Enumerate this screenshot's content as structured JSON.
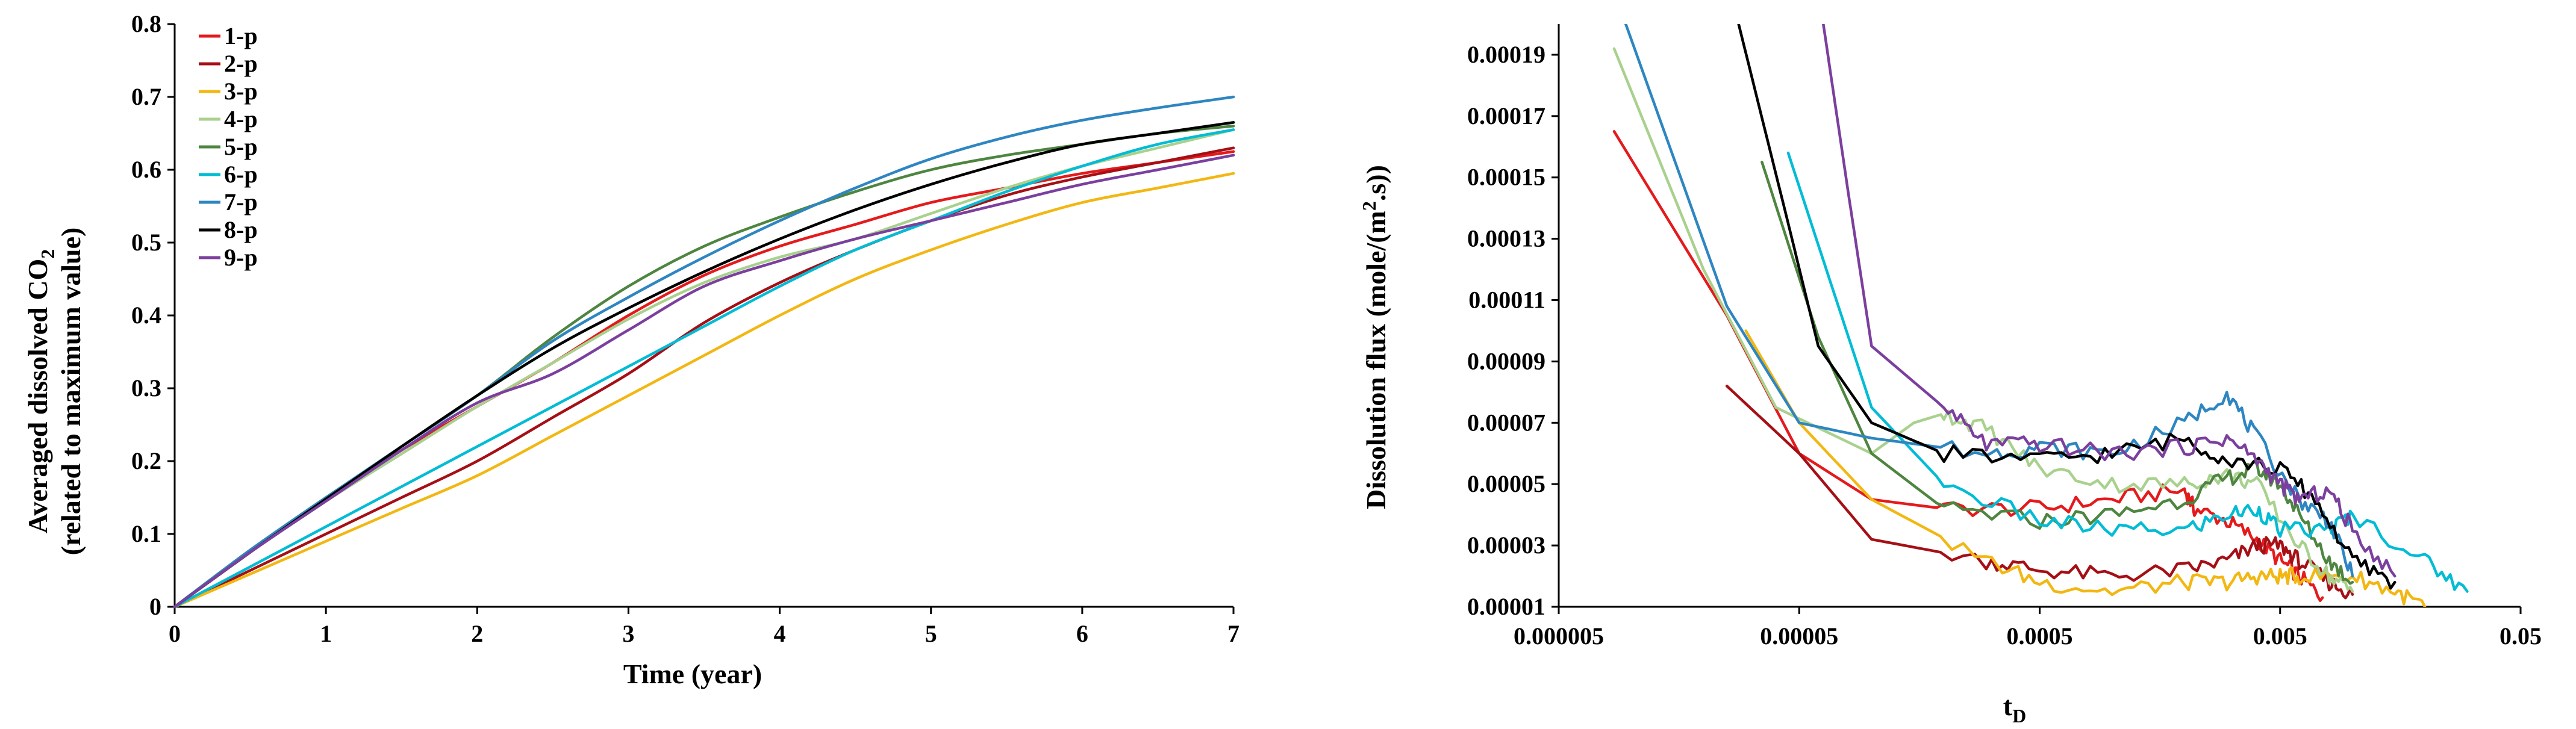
{
  "chart_data": [
    {
      "type": "line",
      "title": "",
      "xlabel": "Time (year)",
      "ylabel_line1_prefix": "Averaged dissolved CO",
      "ylabel_line1_sub": "2",
      "ylabel_line2": "(related to maximum value)",
      "xlim": [
        0,
        7
      ],
      "ylim": [
        0,
        0.8
      ],
      "xticks": [
        "0",
        "1",
        "2",
        "3",
        "4",
        "5",
        "6",
        "7"
      ],
      "yticks": [
        "0",
        "0.1",
        "0.2",
        "0.3",
        "0.4",
        "0.5",
        "0.6",
        "0.7",
        "0.8"
      ],
      "legend_position": "top-left",
      "x": [
        0,
        0.5,
        1,
        1.5,
        2,
        2.5,
        3,
        3.5,
        4,
        4.5,
        5,
        5.5,
        6,
        6.5,
        7
      ],
      "series": [
        {
          "name": "1-p",
          "color": "#e41a1c",
          "values": [
            0,
            0.075,
            0.148,
            0.215,
            0.275,
            0.335,
            0.4,
            0.455,
            0.495,
            0.525,
            0.555,
            0.575,
            0.595,
            0.61,
            0.625
          ]
        },
        {
          "name": "2-p",
          "color": "#a50f15",
          "values": [
            0,
            0.05,
            0.1,
            0.15,
            0.2,
            0.26,
            0.32,
            0.39,
            0.445,
            0.49,
            0.53,
            0.565,
            0.59,
            0.61,
            0.63
          ]
        },
        {
          "name": "3-p",
          "color": "#f2b712",
          "values": [
            0,
            0.045,
            0.09,
            0.135,
            0.18,
            0.235,
            0.29,
            0.345,
            0.4,
            0.45,
            0.49,
            0.525,
            0.555,
            0.575,
            0.595
          ]
        },
        {
          "name": "4-p",
          "color": "#a9d18e",
          "values": [
            0,
            0.075,
            0.145,
            0.21,
            0.275,
            0.335,
            0.395,
            0.445,
            0.48,
            0.505,
            0.54,
            0.575,
            0.605,
            0.63,
            0.655
          ]
        },
        {
          "name": "5-p",
          "color": "#4e8540",
          "values": [
            0,
            0.078,
            0.15,
            0.22,
            0.29,
            0.37,
            0.44,
            0.495,
            0.535,
            0.57,
            0.6,
            0.62,
            0.635,
            0.65,
            0.66
          ]
        },
        {
          "name": "6-p",
          "color": "#00bcd4",
          "values": [
            0,
            0.055,
            0.11,
            0.165,
            0.22,
            0.275,
            0.33,
            0.385,
            0.44,
            0.49,
            0.53,
            0.57,
            0.605,
            0.635,
            0.655
          ]
        },
        {
          "name": "7-p",
          "color": "#2e86c1",
          "values": [
            0,
            0.078,
            0.15,
            0.22,
            0.29,
            0.365,
            0.425,
            0.48,
            0.53,
            0.575,
            0.615,
            0.645,
            0.668,
            0.685,
            0.7
          ]
        },
        {
          "name": "8-p",
          "color": "#000000",
          "values": [
            0,
            0.075,
            0.148,
            0.22,
            0.29,
            0.355,
            0.41,
            0.46,
            0.505,
            0.545,
            0.58,
            0.61,
            0.635,
            0.65,
            0.665
          ]
        },
        {
          "name": "9-p",
          "color": "#7b3f9e",
          "values": [
            0,
            0.075,
            0.145,
            0.215,
            0.28,
            0.32,
            0.38,
            0.44,
            0.475,
            0.505,
            0.53,
            0.555,
            0.58,
            0.6,
            0.62
          ]
        }
      ]
    },
    {
      "type": "line",
      "title": "",
      "xscale": "log",
      "xlabel_main": "t",
      "xlabel_sub": "D",
      "ylabel_prefix": "Dissolution flux (mole/(m",
      "ylabel_sup": "2",
      "ylabel_suffix": ".s))",
      "xlim": [
        5e-06,
        0.05
      ],
      "ylim": [
        1e-05,
        0.0002
      ],
      "xtick_values": [
        5e-06,
        5e-05,
        0.0005,
        0.005,
        0.05
      ],
      "xticks": [
        "0.000005",
        "0.00005",
        "0.0005",
        "0.005",
        "0.05"
      ],
      "ytick_values": [
        1e-05,
        3e-05,
        5e-05,
        7e-05,
        9e-05,
        0.00011,
        0.00013,
        0.00015,
        0.00017,
        0.00019
      ],
      "yticks": [
        "0.00001",
        "0.00003",
        "0.00005",
        "0.00007",
        "0.00009",
        "0.00011",
        "0.00013",
        "0.00015",
        "0.00017",
        "0.00019"
      ],
      "series": [
        {
          "name": "1-p",
          "color": "#e41a1c",
          "points": [
            [
              8.5e-06,
              0.000165
            ],
            [
              2.5e-05,
              0.000105
            ],
            [
              5e-05,
              6e-05
            ],
            [
              0.0001,
              4.5e-05
            ],
            [
              0.0002,
              4.2e-05
            ],
            [
              0.0005,
              4.2e-05
            ],
            [
              0.001,
              4.5e-05
            ],
            [
              0.002,
              4.8e-05
            ],
            [
              0.0022,
              4.2e-05
            ],
            [
              0.003,
              3.8e-05
            ],
            [
              0.004,
              3.2e-05
            ],
            [
              0.005,
              2.5e-05
            ],
            [
              0.006,
              2e-05
            ],
            [
              0.0075,
              1.3e-05
            ]
          ]
        },
        {
          "name": "2-p",
          "color": "#a50f15",
          "points": [
            [
              2.5e-05,
              8.2e-05
            ],
            [
              5e-05,
              6e-05
            ],
            [
              0.0001,
              3.2e-05
            ],
            [
              0.0003,
              2.5e-05
            ],
            [
              0.0005,
              2.2e-05
            ],
            [
              0.001,
              2e-05
            ],
            [
              0.002,
              2.2e-05
            ],
            [
              0.003,
              2.5e-05
            ],
            [
              0.004,
              3e-05
            ],
            [
              0.005,
              3e-05
            ],
            [
              0.006,
              2.5e-05
            ],
            [
              0.008,
              1.8e-05
            ],
            [
              0.01,
              1.4e-05
            ]
          ]
        },
        {
          "name": "3-p",
          "color": "#f2b712",
          "points": [
            [
              3e-05,
              0.0001
            ],
            [
              5e-05,
              7e-05
            ],
            [
              0.0001,
              4.5e-05
            ],
            [
              0.0003,
              2.5e-05
            ],
            [
              0.0005,
              1.8e-05
            ],
            [
              0.001,
              1.5e-05
            ],
            [
              0.002,
              1.8e-05
            ],
            [
              0.003,
              1.8e-05
            ],
            [
              0.004,
              2e-05
            ],
            [
              0.005,
              2e-05
            ],
            [
              0.006,
              2e-05
            ],
            [
              0.01,
              2e-05
            ],
            [
              0.015,
              1.5e-05
            ],
            [
              0.02,
              1e-05
            ]
          ]
        },
        {
          "name": "4-p",
          "color": "#a9d18e",
          "points": [
            [
              8.5e-06,
              0.000192
            ],
            [
              2e-05,
              0.00012
            ],
            [
              4e-05,
              7.5e-05
            ],
            [
              0.0001,
              6e-05
            ],
            [
              0.00015,
              7e-05
            ],
            [
              0.0002,
              7.3e-05
            ],
            [
              0.0003,
              6.8e-05
            ],
            [
              0.0005,
              5.5e-05
            ],
            [
              0.001,
              5e-05
            ],
            [
              0.002,
              5e-05
            ],
            [
              0.003,
              5.3e-05
            ],
            [
              0.004,
              5e-05
            ],
            [
              0.006,
              3e-05
            ],
            [
              0.008,
              2e-05
            ],
            [
              0.01,
              1.5e-05
            ]
          ]
        },
        {
          "name": "5-p",
          "color": "#4e8540",
          "points": [
            [
              3.5e-05,
              0.000155
            ],
            [
              6e-05,
              9.8e-05
            ],
            [
              0.0001,
              6e-05
            ],
            [
              0.0002,
              4.2e-05
            ],
            [
              0.0005,
              3.8e-05
            ],
            [
              0.001,
              4e-05
            ],
            [
              0.002,
              4.5e-05
            ],
            [
              0.003,
              5.2e-05
            ],
            [
              0.004,
              5.5e-05
            ],
            [
              0.005,
              5e-05
            ],
            [
              0.006,
              4e-05
            ],
            [
              0.008,
              2.5e-05
            ],
            [
              0.01,
              1.8e-05
            ]
          ]
        },
        {
          "name": "6-p",
          "color": "#00bcd4",
          "points": [
            [
              4.5e-05,
              0.000158
            ],
            [
              7e-05,
              0.000112
            ],
            [
              0.0001,
              7.5e-05
            ],
            [
              0.0002,
              5e-05
            ],
            [
              0.0005,
              3.8e-05
            ],
            [
              0.001,
              3.5e-05
            ],
            [
              0.002,
              3.5e-05
            ],
            [
              0.003,
              4e-05
            ],
            [
              0.004,
              4.2e-05
            ],
            [
              0.005,
              3.5e-05
            ],
            [
              0.008,
              3.5e-05
            ],
            [
              0.01,
              4e-05
            ],
            [
              0.02,
              2.5e-05
            ],
            [
              0.03,
              1.5e-05
            ]
          ]
        },
        {
          "name": "7-p",
          "color": "#2e86c1",
          "points": [
            [
              9.5e-06,
              0.0002
            ],
            [
              2.5e-05,
              0.000108
            ],
            [
              5e-05,
              7e-05
            ],
            [
              0.0001,
              6.5e-05
            ],
            [
              0.0003,
              6e-05
            ],
            [
              0.0005,
              6.2e-05
            ],
            [
              0.001,
              6e-05
            ],
            [
              0.002,
              7e-05
            ],
            [
              0.003,
              8e-05
            ],
            [
              0.004,
              6.5e-05
            ],
            [
              0.006,
              4.5e-05
            ],
            [
              0.008,
              3.8e-05
            ],
            [
              0.01,
              2e-05
            ]
          ]
        },
        {
          "name": "8-p",
          "color": "#000000",
          "points": [
            [
              2.8e-05,
              0.0002
            ],
            [
              4.5e-05,
              0.000135
            ],
            [
              6e-05,
              9.5e-05
            ],
            [
              0.0001,
              7e-05
            ],
            [
              0.0002,
              6e-05
            ],
            [
              0.0005,
              5.8e-05
            ],
            [
              0.001,
              6e-05
            ],
            [
              0.002,
              6.5e-05
            ],
            [
              0.003,
              5.8e-05
            ],
            [
              0.005,
              5.5e-05
            ],
            [
              0.007,
              4.5e-05
            ],
            [
              0.01,
              2.5e-05
            ],
            [
              0.015,
              1.8e-05
            ]
          ]
        },
        {
          "name": "9-p",
          "color": "#7b3f9e",
          "points": [
            [
              6.3e-05,
              0.0002
            ],
            [
              8e-05,
              0.000145
            ],
            [
              0.0001,
              9.5e-05
            ],
            [
              0.0002,
              7.5e-05
            ],
            [
              0.0003,
              6.3e-05
            ],
            [
              0.0005,
              6.3e-05
            ],
            [
              0.001,
              6e-05
            ],
            [
              0.002,
              6.2e-05
            ],
            [
              0.003,
              6.5e-05
            ],
            [
              0.004,
              5.8e-05
            ],
            [
              0.005,
              5e-05
            ],
            [
              0.006,
              4.5e-05
            ],
            [
              0.008,
              4.8e-05
            ],
            [
              0.01,
              3.5e-05
            ],
            [
              0.015,
              2e-05
            ]
          ]
        }
      ]
    }
  ]
}
